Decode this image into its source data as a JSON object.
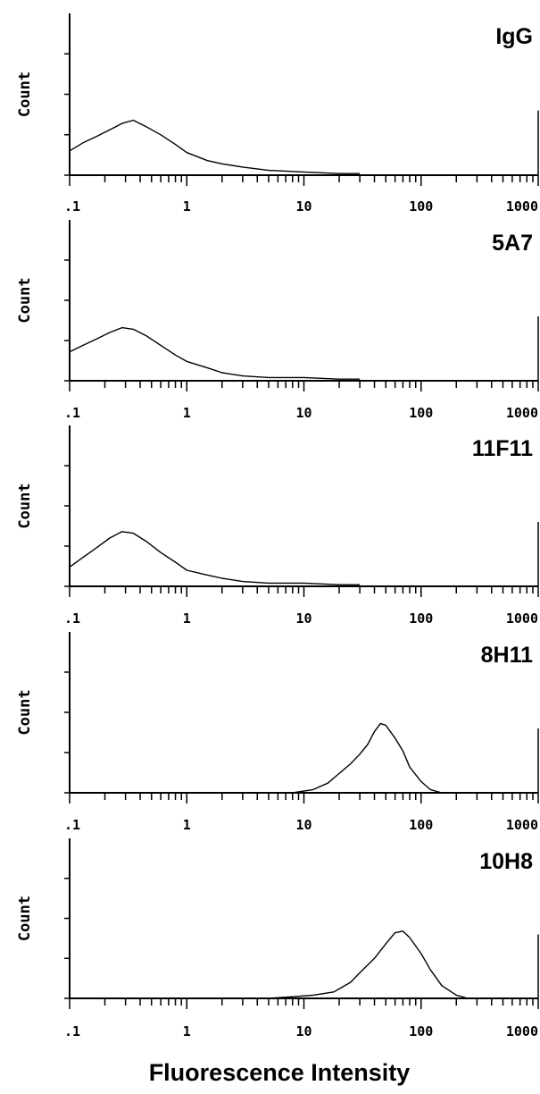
{
  "chart_data": {
    "type": "line",
    "xlabel": "Fluorescence Intensity",
    "xscale": "log",
    "xlim": [
      0.1,
      1000
    ],
    "x_ticklabels": [
      ".1",
      "1",
      "10",
      "100",
      "1000"
    ],
    "grid": false,
    "panels": [
      {
        "title": "IgG",
        "ylabel": "Count",
        "series": [
          {
            "x": [
              0.1,
              0.13,
              0.17,
              0.22,
              0.28,
              0.35,
              0.45,
              0.6,
              0.8,
              1.0,
              1.5,
              2,
              3,
              5,
              10,
              20,
              30
            ],
            "y": [
              0.15,
              0.2,
              0.24,
              0.28,
              0.32,
              0.34,
              0.3,
              0.25,
              0.19,
              0.14,
              0.09,
              0.07,
              0.05,
              0.03,
              0.02,
              0.01,
              0.01
            ]
          }
        ]
      },
      {
        "title": "5A7",
        "ylabel": "Count",
        "series": [
          {
            "x": [
              0.1,
              0.13,
              0.17,
              0.22,
              0.28,
              0.35,
              0.45,
              0.6,
              0.8,
              1.0,
              1.5,
              2,
              3,
              5,
              10,
              20,
              30
            ],
            "y": [
              0.18,
              0.22,
              0.26,
              0.3,
              0.33,
              0.32,
              0.28,
              0.22,
              0.16,
              0.12,
              0.08,
              0.05,
              0.03,
              0.02,
              0.02,
              0.01,
              0.01
            ]
          }
        ]
      },
      {
        "title": "11F11",
        "ylabel": "Count",
        "series": [
          {
            "x": [
              0.1,
              0.13,
              0.17,
              0.22,
              0.28,
              0.35,
              0.45,
              0.6,
              0.8,
              1.0,
              1.5,
              2,
              3,
              5,
              10,
              20,
              30
            ],
            "y": [
              0.12,
              0.18,
              0.24,
              0.3,
              0.34,
              0.33,
              0.28,
              0.21,
              0.15,
              0.1,
              0.07,
              0.05,
              0.03,
              0.02,
              0.02,
              0.01,
              0.01
            ]
          }
        ]
      },
      {
        "title": "8H11",
        "ylabel": "Count",
        "series": [
          {
            "x": [
              8,
              12,
              16,
              20,
              25,
              30,
              35,
              40,
              45,
              50,
              60,
              70,
              80,
              100,
              120,
              150
            ],
            "y": [
              0.0,
              0.02,
              0.06,
              0.12,
              0.18,
              0.24,
              0.3,
              0.38,
              0.43,
              0.42,
              0.34,
              0.26,
              0.16,
              0.07,
              0.02,
              0.0
            ]
          }
        ]
      },
      {
        "title": "10H8",
        "ylabel": "Count",
        "series": [
          {
            "x": [
              5,
              8,
              12,
              18,
              25,
              30,
              40,
              50,
              60,
              70,
              80,
              100,
              120,
              150,
              200,
              250
            ],
            "y": [
              0.0,
              0.01,
              0.02,
              0.04,
              0.1,
              0.16,
              0.25,
              0.34,
              0.41,
              0.42,
              0.38,
              0.28,
              0.18,
              0.08,
              0.02,
              0.0
            ]
          }
        ]
      }
    ]
  }
}
